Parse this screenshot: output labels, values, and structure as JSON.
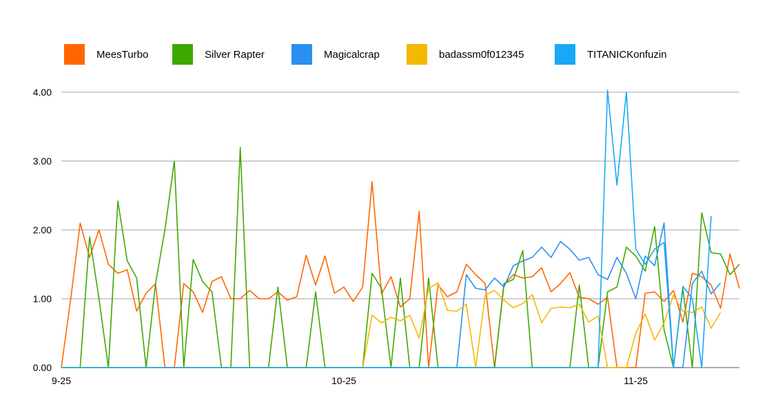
{
  "chart_data": {
    "type": "line",
    "ylim": [
      0,
      4
    ],
    "y_ticks": [
      "0.00",
      "1.00",
      "2.00",
      "3.00",
      "4.00"
    ],
    "x_tick_labels": [
      {
        "index": 0,
        "label": "9-25"
      },
      {
        "index": 30,
        "label": "10-25"
      },
      {
        "index": 61,
        "label": "11-25"
      }
    ],
    "grid": true,
    "legend_position": "top",
    "series": [
      {
        "name": "MeesTurbo",
        "color": "#ff6600",
        "values": [
          0,
          1,
          2.1,
          1.6,
          2.0,
          1.5,
          1.37,
          1.42,
          0.82,
          1.08,
          1.22,
          0,
          0,
          1.22,
          1.1,
          0.8,
          1.25,
          1.32,
          1.0,
          1.0,
          1.12,
          1.0,
          1.0,
          1.1,
          0.98,
          1.03,
          1.63,
          1.2,
          1.62,
          1.08,
          1.17,
          0.96,
          1.17,
          2.7,
          1.07,
          1.32,
          0.88,
          1.0,
          2.27,
          0,
          1.2,
          1.03,
          1.1,
          1.5,
          1.35,
          1.22,
          0,
          1.2,
          1.35,
          1.3,
          1.32,
          1.45,
          1.1,
          1.22,
          1.38,
          1.02,
          1.0,
          0.92,
          1.02,
          0,
          0,
          0,
          1.08,
          1.1,
          0.96,
          1.12,
          0.66,
          1.37,
          1.32,
          1.2,
          0.86,
          1.65,
          1.15
        ]
      },
      {
        "name": "Silver Rapter",
        "color": "#3fa800",
        "values": [
          0,
          0,
          0,
          1.9,
          1.0,
          0,
          2.42,
          1.55,
          1.3,
          0,
          1.22,
          2.0,
          3.0,
          0,
          1.57,
          1.25,
          1.1,
          0,
          0,
          3.2,
          0,
          0,
          0,
          1.17,
          0,
          0,
          0,
          1.1,
          0,
          0,
          0,
          0,
          0,
          1.37,
          1.15,
          0,
          1.3,
          0,
          0,
          1.3,
          0,
          0,
          0,
          0,
          0,
          0,
          0,
          1.22,
          1.28,
          1.7,
          0,
          0,
          0,
          0,
          0,
          1.2,
          0,
          0,
          1.1,
          1.17,
          1.75,
          1.62,
          1.4,
          2.05,
          0.55,
          0,
          1.15,
          0,
          2.25,
          1.67,
          1.65,
          1.35,
          1.5
        ]
      },
      {
        "name": "Magicalcrap",
        "color": "#2a8ff0",
        "values": [
          0,
          0,
          0,
          0,
          0,
          0,
          0,
          0,
          0,
          0,
          0,
          0,
          0,
          0,
          0,
          0,
          0,
          0,
          0,
          0,
          0,
          0,
          0,
          0,
          0,
          0,
          0,
          0,
          0,
          0,
          0,
          0,
          0,
          0,
          0,
          0,
          0,
          0,
          0,
          0,
          0,
          0,
          0,
          1.35,
          1.15,
          1.13,
          1.3,
          1.17,
          1.48,
          1.55,
          1.6,
          1.75,
          1.6,
          1.83,
          1.72,
          1.56,
          1.6,
          1.35,
          1.28,
          1.6,
          1.37,
          1.0,
          1.62,
          1.48,
          2.1,
          0,
          0,
          1.22,
          1.4,
          1.07,
          1.23
        ]
      },
      {
        "name": "badassm0f012345",
        "color": "#f5b800",
        "values": [
          0,
          0,
          0,
          0,
          0,
          0,
          0,
          0,
          0,
          0,
          0,
          0,
          0,
          0,
          0,
          0,
          0,
          0,
          0,
          0,
          0,
          0,
          0,
          0,
          0,
          0,
          0,
          0,
          0,
          0,
          0,
          0,
          0,
          0.76,
          0.65,
          0.73,
          0.68,
          0.76,
          0.43,
          1.15,
          1.23,
          0.83,
          0.82,
          0.92,
          0,
          1.05,
          1.12,
          0.98,
          0.87,
          0.93,
          1.06,
          0.65,
          0.86,
          0.88,
          0.87,
          0.92,
          0.66,
          0.75,
          0,
          0,
          0,
          0.5,
          0.78,
          0.4,
          0.65,
          1.05,
          0.82,
          0.8,
          0.88,
          0.57,
          0.8
        ]
      },
      {
        "name": "TITANICKonfuzin",
        "color": "#17a9f5",
        "values": [
          0,
          0,
          0,
          0,
          0,
          0,
          0,
          0,
          0,
          0,
          0,
          0,
          0,
          0,
          0,
          0,
          0,
          0,
          0,
          0,
          0,
          0,
          0,
          0,
          0,
          0,
          0,
          0,
          0,
          0,
          0,
          0,
          0,
          0,
          0,
          0,
          0,
          0,
          0,
          0,
          0,
          0,
          0,
          0,
          0,
          0,
          0,
          0,
          0,
          0,
          0,
          0,
          0,
          0,
          0,
          0,
          0,
          0,
          4.03,
          2.65,
          4.0,
          1.72,
          1.5,
          1.72,
          1.82,
          0,
          1.18,
          1.0,
          0,
          2.2
        ]
      }
    ]
  }
}
